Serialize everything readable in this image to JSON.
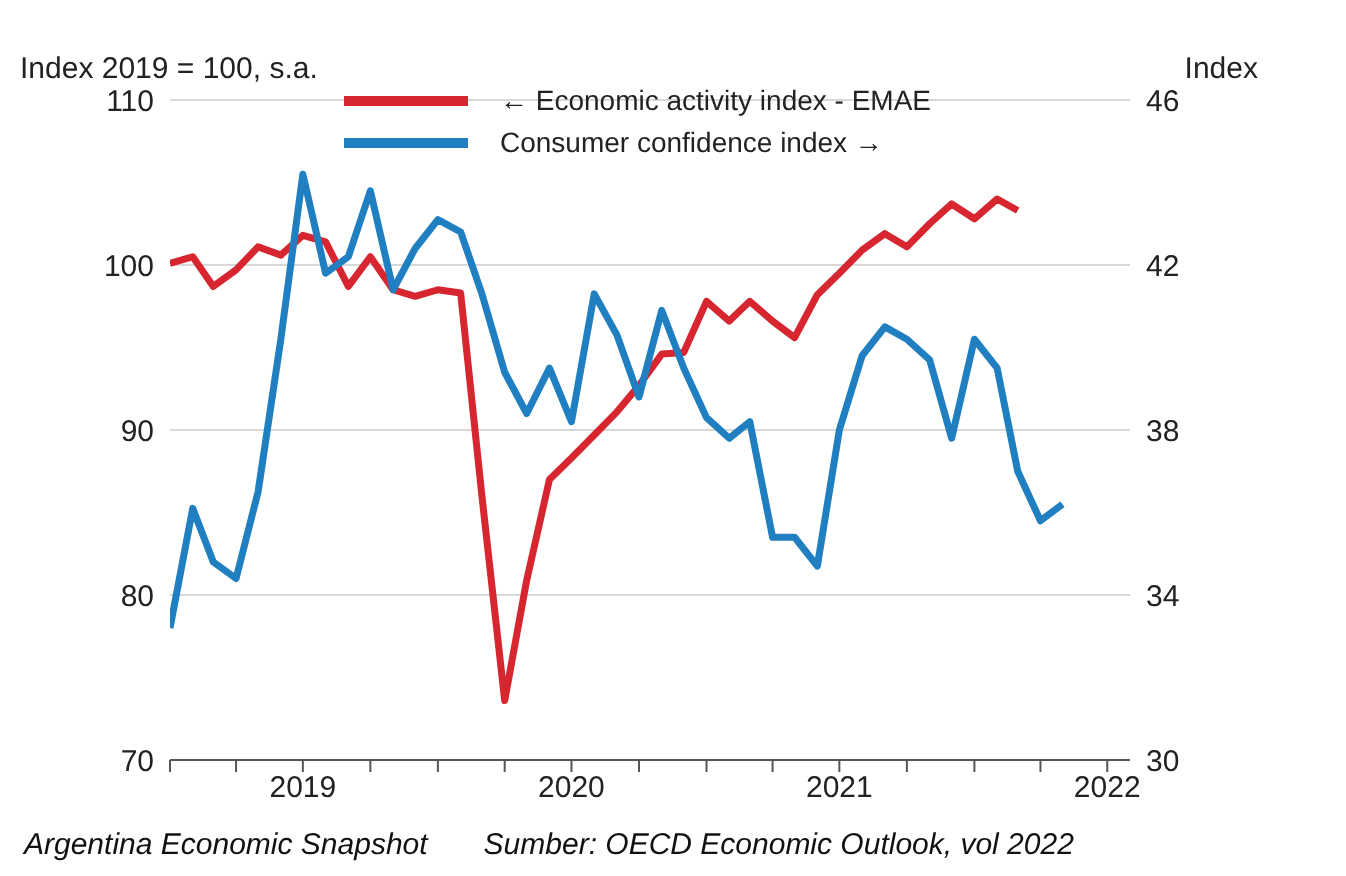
{
  "chart_data": {
    "type": "line",
    "ylabel": "Index 2019 = 100, s.a.",
    "y2label": "Index",
    "x": [
      "2019-01",
      "2019-02",
      "2019-03",
      "2019-04",
      "2019-05",
      "2019-06",
      "2019-07",
      "2019-08",
      "2019-09",
      "2019-10",
      "2019-11",
      "2019-12",
      "2020-01",
      "2020-02",
      "2020-03",
      "2020-04",
      "2020-05",
      "2020-06",
      "2020-07",
      "2020-08",
      "2020-09",
      "2020-10",
      "2020-11",
      "2020-12",
      "2021-01",
      "2021-02",
      "2021-03",
      "2021-04",
      "2021-05",
      "2021-06",
      "2021-07",
      "2021-08",
      "2021-09",
      "2021-10",
      "2021-11",
      "2021-12",
      "2022-01",
      "2022-02",
      "2022-03",
      "2022-04",
      "2022-05"
    ],
    "series": [
      {
        "name": "← Economic activity index - EMAE",
        "color": "#d7262f",
        "values": [
          100.1,
          100.5,
          98.7,
          99.7,
          101.1,
          100.6,
          101.8,
          101.4,
          98.7,
          100.5,
          98.5,
          98.1,
          98.5,
          98.3,
          86.0,
          73.6,
          80.9,
          87.0,
          88.3,
          89.7,
          91.1,
          92.7,
          94.6,
          94.7,
          97.8,
          96.6,
          97.8,
          96.6,
          95.6,
          98.2,
          99.5,
          100.9,
          101.9,
          101.1,
          102.5,
          103.7,
          102.8,
          104.0,
          103.3,
          null,
          null
        ]
      },
      {
        "name": "Consumer confidence index  →",
        "color": "#1f7fc1",
        "axis": "y2",
        "values": [
          33.2,
          36.1,
          34.8,
          34.4,
          36.5,
          40.2,
          44.2,
          41.8,
          42.2,
          43.8,
          41.4,
          42.4,
          43.1,
          42.8,
          41.3,
          39.4,
          38.4,
          39.5,
          38.2,
          41.3,
          40.3,
          38.8,
          40.9,
          39.5,
          38.3,
          37.8,
          38.2,
          35.4,
          35.4,
          34.7,
          38.0,
          39.8,
          40.5,
          40.2,
          39.7,
          37.8,
          40.2,
          39.5,
          37.0,
          35.8,
          36.2
        ]
      }
    ],
    "xlim": [
      "2019-01",
      "2022-08"
    ],
    "xticks": [
      {
        "value": "2019-01",
        "label": null
      },
      {
        "value": "2019-04",
        "label": null
      },
      {
        "value": "2019-07",
        "label": "2019"
      },
      {
        "value": "2019-10",
        "label": null
      },
      {
        "value": "2020-01",
        "label": null
      },
      {
        "value": "2020-04",
        "label": null
      },
      {
        "value": "2020-07",
        "label": "2020"
      },
      {
        "value": "2020-10",
        "label": null
      },
      {
        "value": "2021-01",
        "label": null
      },
      {
        "value": "2021-04",
        "label": null
      },
      {
        "value": "2021-07",
        "label": "2021"
      },
      {
        "value": "2021-10",
        "label": null
      },
      {
        "value": "2022-01",
        "label": null
      },
      {
        "value": "2022-04",
        "label": null
      },
      {
        "value": "2022-07",
        "label": "2022"
      }
    ],
    "ylim": [
      70,
      110
    ],
    "yticks": [
      70,
      80,
      90,
      100,
      110
    ],
    "y2lim": [
      30,
      46
    ],
    "y2ticks": [
      30,
      34,
      38,
      42,
      46
    ],
    "grid": "y",
    "legend": "top",
    "marker": "none",
    "line_style": "solid",
    "annotations": [
      "Argentina Economic Snapshot",
      "Sumber: OECD Economic Outlook, vol 2022"
    ]
  }
}
